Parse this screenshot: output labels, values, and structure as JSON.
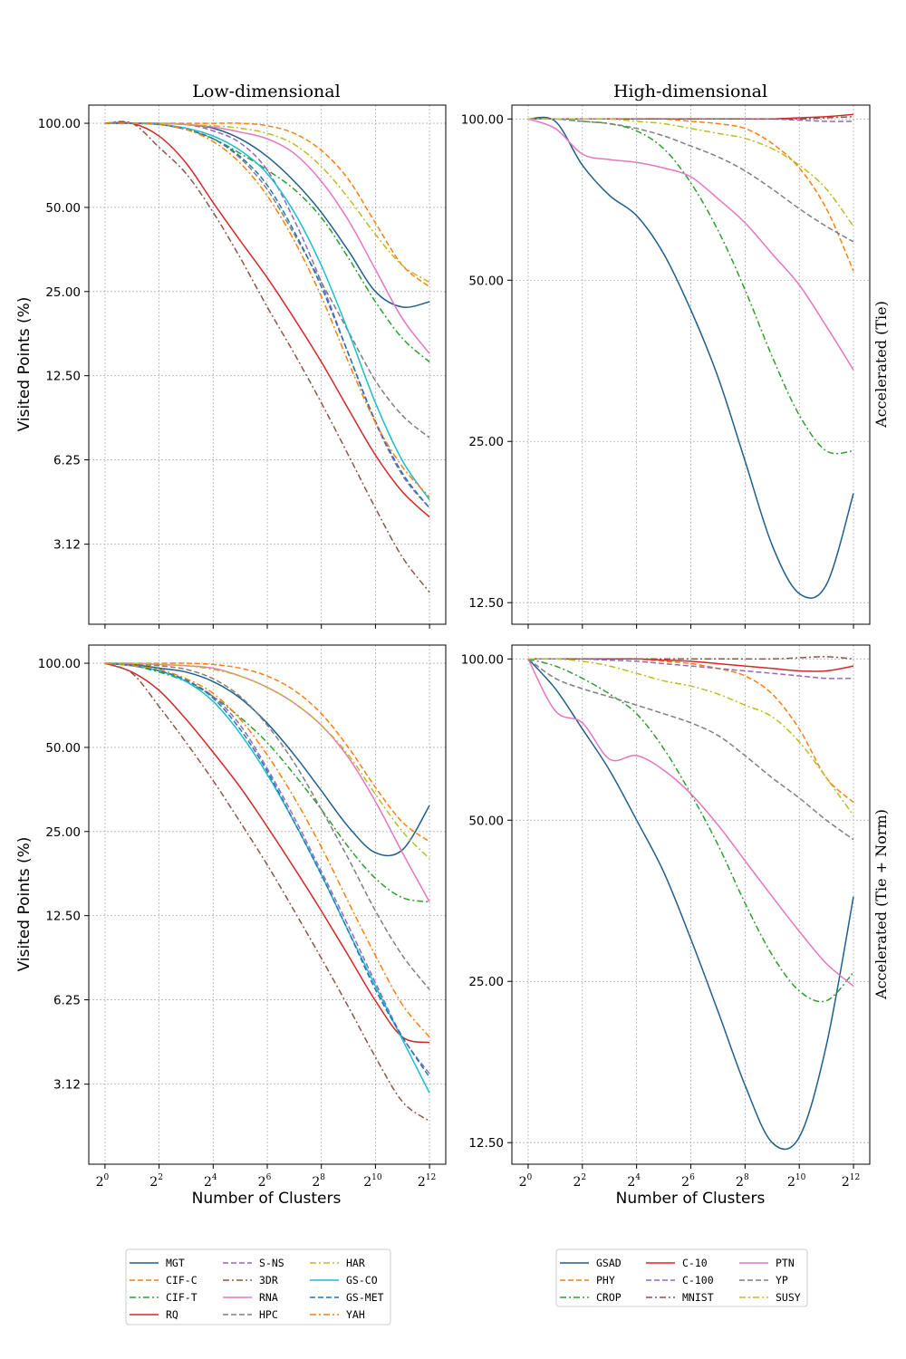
{
  "column_titles": [
    "Low-dimensional",
    "High-dimensional"
  ],
  "row_titles": [
    "Accelerated (Tie)",
    "Accelerated (Tie + Norm)"
  ],
  "ylabel": "Visited Points (%)",
  "xlabel": "Number of Clusters",
  "chart_data": [
    {
      "id": "low-tie",
      "type": "line",
      "title": "Low-dimensional",
      "row_label": "Accelerated (Tie)",
      "xlabel": "",
      "ylabel": "Visited Points (%)",
      "x_scale": "log2",
      "y_scale": "log2",
      "xlim_exp": [
        -0.6,
        12.6
      ],
      "ylim_log2": [
        0.69,
        6.86
      ],
      "x_ticks": [
        0,
        2,
        4,
        6,
        8,
        10,
        12
      ],
      "y_ticks": [
        "100.00",
        "50.00",
        "25.00",
        "12.50",
        "6.25",
        "3.12"
      ],
      "x": [
        0,
        1,
        2,
        3,
        4,
        5,
        6,
        7,
        8,
        9,
        10,
        11,
        12
      ],
      "series": [
        {
          "name": "MGT",
          "color": "#1f5f8b",
          "dash": "solid",
          "values": [
            100,
            100,
            100,
            99,
            96,
            88,
            76,
            62,
            48,
            35,
            25,
            22,
            23
          ]
        },
        {
          "name": "CIF-C",
          "color": "#ff7f0e",
          "dash": "dash",
          "values": [
            100,
            100,
            100,
            100,
            100,
            100,
            98,
            92,
            80,
            63,
            44,
            31,
            26
          ]
        },
        {
          "name": "CIF-T",
          "color": "#2ca02c",
          "dash": "dashdot",
          "values": [
            100,
            100,
            99,
            95,
            88,
            78,
            68,
            58,
            46,
            33,
            23,
            17,
            14
          ]
        },
        {
          "name": "RQ",
          "color": "#d62728",
          "dash": "solid",
          "values": [
            100,
            100,
            90,
            72,
            52,
            38,
            28,
            20,
            14,
            9.5,
            6.5,
            4.8,
            3.9
          ]
        },
        {
          "name": "S-NS",
          "color": "#9467bd",
          "dash": "dash",
          "values": [
            100,
            100,
            100,
            99,
            94,
            85,
            68,
            45,
            27,
            15,
            8.5,
            5.5,
            4.2
          ]
        },
        {
          "name": "3DR",
          "color": "#8c564b",
          "dash": "dashdot",
          "values": [
            100,
            100,
            82,
            66,
            48,
            33,
            22,
            15,
            10,
            6.5,
            4.2,
            2.8,
            2.1
          ]
        },
        {
          "name": "RNA",
          "color": "#e377c2",
          "dash": "solid",
          "values": [
            100,
            100,
            100,
            99,
            97,
            93,
            88,
            78,
            62,
            45,
            30,
            20,
            15
          ]
        },
        {
          "name": "HPC",
          "color": "#7f7f7f",
          "dash": "dash",
          "values": [
            100,
            100,
            99,
            95,
            88,
            75,
            58,
            40,
            27,
            18,
            12,
            9,
            7.5
          ]
        },
        {
          "name": "HAR",
          "color": "#bcbd22",
          "dash": "dashdot",
          "values": [
            100,
            100,
            100,
            99,
            98,
            96,
            92,
            84,
            70,
            54,
            40,
            31,
            27
          ]
        },
        {
          "name": "GS-CO",
          "color": "#17becf",
          "dash": "solid",
          "values": [
            100,
            100,
            99,
            96,
            90,
            80,
            66,
            48,
            31,
            18,
            10,
            6.2,
            4.5
          ]
        },
        {
          "name": "GS-MET",
          "color": "#1f77b4",
          "dash": "dash",
          "values": [
            100,
            100,
            99,
            95,
            88,
            76,
            60,
            41,
            26,
            15,
            8.6,
            5.6,
            4.2
          ]
        },
        {
          "name": "YAH",
          "color": "#ff7f0e",
          "dash": "dashdot",
          "values": [
            100,
            100,
            99,
            95,
            86,
            72,
            55,
            38,
            24,
            14,
            8.5,
            5.9,
            4.6
          ]
        }
      ]
    },
    {
      "id": "high-tie",
      "type": "line",
      "title": "High-dimensional",
      "row_label": "Accelerated (Tie)",
      "xlabel": "",
      "ylabel": "",
      "x_scale": "log2",
      "y_scale": "log2",
      "xlim_exp": [
        -0.6,
        12.6
      ],
      "ylim_log2": [
        3.51,
        6.73
      ],
      "x_ticks": [
        0,
        2,
        4,
        6,
        8,
        10,
        12
      ],
      "y_ticks": [
        "100.00",
        "50.00",
        "25.00",
        "12.50"
      ],
      "x": [
        0,
        1,
        2,
        3,
        4,
        5,
        6,
        7,
        8,
        9,
        10,
        11,
        12
      ],
      "series": [
        {
          "name": "GSAD",
          "color": "#1f5f8b",
          "dash": "solid",
          "values": [
            100,
            99,
            82,
            72,
            66,
            56,
            44,
            33,
            23,
            16,
            13,
            13.5,
            20
          ]
        },
        {
          "name": "PHY",
          "color": "#ff7f0e",
          "dash": "dash",
          "values": [
            100,
            100,
            100,
            100,
            100,
            100,
            99,
            98,
            96,
            90,
            81,
            68,
            52
          ]
        },
        {
          "name": "CROP",
          "color": "#2ca02c",
          "dash": "dashdot",
          "values": [
            100,
            100,
            99,
            98,
            95,
            88,
            76,
            62,
            48,
            36,
            28,
            24,
            24
          ]
        },
        {
          "name": "C-10",
          "color": "#d62728",
          "dash": "solid",
          "values": [
            100,
            100,
            100,
            100,
            100,
            100,
            100,
            100,
            100,
            100,
            100.5,
            101,
            102
          ]
        },
        {
          "name": "C-100",
          "color": "#9467bd",
          "dash": "dash",
          "values": [
            100,
            100,
            100,
            100,
            100,
            100,
            100,
            100,
            100,
            100,
            99.5,
            99,
            99
          ]
        },
        {
          "name": "MNIST",
          "color": "#8c564b",
          "dash": "dashdot",
          "values": [
            100,
            100,
            100,
            100,
            100,
            100,
            100,
            100,
            100,
            100,
            100,
            100.5,
            101
          ]
        },
        {
          "name": "PTN",
          "color": "#e377c2",
          "dash": "solid",
          "values": [
            100,
            96,
            86,
            84,
            83,
            81,
            78,
            71,
            64,
            56,
            49,
            41,
            34
          ]
        },
        {
          "name": "YP",
          "color": "#7f7f7f",
          "dash": "dash",
          "values": [
            100,
            100,
            99,
            98,
            96,
            93,
            89,
            85,
            80,
            74,
            68,
            63,
            59
          ]
        },
        {
          "name": "SUSY",
          "color": "#bcbd22",
          "dash": "dashdot",
          "values": [
            100,
            100,
            100,
            100,
            99,
            98,
            96,
            94,
            92,
            88,
            82,
            74,
            63
          ]
        }
      ]
    },
    {
      "id": "low-tie-norm",
      "type": "line",
      "title": "Low-dimensional",
      "row_label": "Accelerated (Tie + Norm)",
      "xlabel": "Number of Clusters",
      "ylabel": "Visited Points (%)",
      "x_scale": "log2",
      "y_scale": "log2",
      "xlim_exp": [
        -0.6,
        12.6
      ],
      "ylim_log2": [
        0.69,
        6.86
      ],
      "x_ticks": [
        0,
        2,
        4,
        6,
        8,
        10,
        12
      ],
      "y_ticks": [
        "100.00",
        "50.00",
        "25.00",
        "12.50",
        "6.25",
        "3.12"
      ],
      "x": [
        0,
        1,
        2,
        3,
        4,
        5,
        6,
        7,
        8,
        9,
        10,
        11,
        12
      ],
      "series": [
        {
          "name": "MGT",
          "color": "#1f5f8b",
          "dash": "solid",
          "values": [
            100,
            99,
            96,
            93,
            86,
            75,
            61,
            47,
            35,
            26,
            21,
            21.5,
            31
          ]
        },
        {
          "name": "CIF-C",
          "color": "#ff7f0e",
          "dash": "dash",
          "values": [
            100,
            100,
            100,
            100,
            99,
            96,
            90,
            80,
            66,
            50,
            36,
            27,
            23
          ]
        },
        {
          "name": "CIF-T",
          "color": "#2ca02c",
          "dash": "dashdot",
          "values": [
            100,
            98,
            93,
            86,
            76,
            64,
            52,
            40,
            30,
            22,
            17,
            14.5,
            14
          ]
        },
        {
          "name": "RQ",
          "color": "#d62728",
          "dash": "solid",
          "values": [
            100,
            93,
            80,
            63,
            48,
            36,
            26,
            18.5,
            13,
            9,
            6.2,
            4.6,
            4.4
          ]
        },
        {
          "name": "S-NS",
          "color": "#9467bd",
          "dash": "dash",
          "values": [
            100,
            98,
            94,
            87,
            76,
            60,
            42,
            28,
            18,
            11.5,
            7.2,
            4.6,
            3.4
          ]
        },
        {
          "name": "3DR",
          "color": "#8c564b",
          "dash": "dashdot",
          "values": [
            100,
            92,
            70,
            52,
            38,
            27,
            19,
            13,
            8.8,
            5.9,
            3.9,
            2.7,
            2.3
          ]
        },
        {
          "name": "RNA",
          "color": "#e377c2",
          "dash": "solid",
          "values": [
            100,
            100,
            99,
            98,
            96,
            90,
            82,
            72,
            60,
            46,
            32,
            21,
            14
          ]
        },
        {
          "name": "HPC",
          "color": "#7f7f7f",
          "dash": "dash",
          "values": [
            100,
            99,
            98,
            95,
            88,
            76,
            60,
            44,
            30,
            20,
            13,
            9,
            6.8
          ]
        },
        {
          "name": "HAR",
          "color": "#bcbd22",
          "dash": "dashdot",
          "values": [
            100,
            100,
            99,
            98,
            95,
            90,
            82,
            72,
            60,
            47,
            34,
            25,
            20
          ]
        },
        {
          "name": "GS-CO",
          "color": "#17becf",
          "dash": "solid",
          "values": [
            100,
            98,
            94,
            86,
            73,
            56,
            40,
            27,
            17.5,
            11,
            7,
            4.5,
            2.9
          ]
        },
        {
          "name": "GS-MET",
          "color": "#1f77b4",
          "dash": "dash",
          "values": [
            100,
            98,
            94,
            87,
            75,
            58,
            41,
            27,
            17.5,
            11,
            6.8,
            4.6,
            3.3
          ]
        },
        {
          "name": "YAH",
          "color": "#ff7f0e",
          "dash": "dashdot",
          "values": [
            100,
            98,
            95,
            88,
            78,
            63,
            47,
            33,
            22,
            14,
            9,
            6,
            4.6
          ]
        }
      ]
    },
    {
      "id": "high-tie-norm",
      "type": "line",
      "title": "High-dimensional",
      "row_label": "Accelerated (Tie + Norm)",
      "xlabel": "Number of Clusters",
      "ylabel": "",
      "x_scale": "log2",
      "y_scale": "log2",
      "xlim_exp": [
        -0.6,
        12.6
      ],
      "ylim_log2": [
        3.51,
        6.73
      ],
      "x_ticks": [
        0,
        2,
        4,
        6,
        8,
        10,
        12
      ],
      "y_ticks": [
        "100.00",
        "50.00",
        "25.00",
        "12.50"
      ],
      "x": [
        0,
        1,
        2,
        3,
        4,
        5,
        6,
        7,
        8,
        9,
        10,
        11,
        12
      ],
      "series": [
        {
          "name": "GSAD",
          "color": "#1f5f8b",
          "dash": "solid",
          "values": [
            100,
            88,
            74,
            62,
            50,
            40,
            30,
            22,
            16,
            12.5,
            12.8,
            19,
            36
          ]
        },
        {
          "name": "PHY",
          "color": "#ff7f0e",
          "dash": "dash",
          "values": [
            100,
            100,
            100,
            100,
            100,
            99,
            98,
            96,
            93,
            86,
            74,
            60,
            54
          ]
        },
        {
          "name": "CROP",
          "color": "#2ca02c",
          "dash": "dashdot",
          "values": [
            100,
            97,
            92,
            86,
            79,
            68,
            56,
            45,
            35,
            28,
            24,
            23,
            26
          ]
        },
        {
          "name": "C-10",
          "color": "#d62728",
          "dash": "solid",
          "values": [
            100,
            100,
            100,
            100,
            100,
            99.5,
            99,
            98,
            97,
            96,
            95,
            95,
            97
          ]
        },
        {
          "name": "C-100",
          "color": "#9467bd",
          "dash": "dash",
          "values": [
            100,
            100,
            100,
            99.5,
            99,
            98,
            97,
            96,
            95,
            94,
            93,
            92,
            92
          ]
        },
        {
          "name": "MNIST",
          "color": "#8c564b",
          "dash": "dashdot",
          "values": [
            100,
            100,
            100,
            100,
            100,
            100,
            100,
            100,
            100,
            100,
            100.5,
            101,
            100
          ]
        },
        {
          "name": "PTN",
          "color": "#e377c2",
          "dash": "solid",
          "values": [
            100,
            80,
            76,
            65,
            66,
            62,
            56,
            49,
            42,
            36,
            31,
            27,
            24.5
          ]
        },
        {
          "name": "YP",
          "color": "#7f7f7f",
          "dash": "dash",
          "values": [
            100,
            92,
            88,
            85,
            82,
            79,
            76,
            72,
            66,
            60,
            55,
            50,
            46
          ]
        },
        {
          "name": "SUSY",
          "color": "#bcbd22",
          "dash": "dashdot",
          "values": [
            100,
            100,
            99,
            97,
            94,
            91,
            89,
            86,
            82,
            78,
            70,
            60,
            51
          ]
        }
      ]
    }
  ]
}
